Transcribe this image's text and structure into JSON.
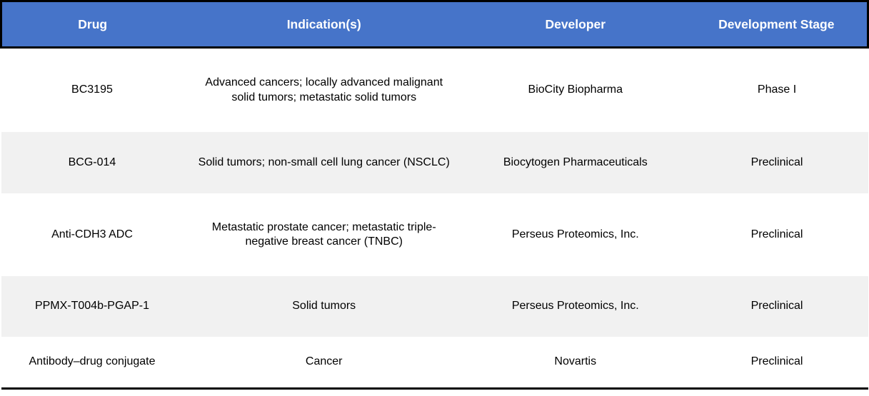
{
  "table": {
    "title": "drug-development-pipeline",
    "colors": {
      "header_bg": "#4674c9",
      "header_text": "#ffffff",
      "row_bg": "#ffffff",
      "row_alt_bg": "#f1f1f1",
      "frame_border": "#000000",
      "body_text": "#000000"
    },
    "columns": [
      {
        "key": "drug",
        "label": "Drug"
      },
      {
        "key": "indication",
        "label": "Indication(s)"
      },
      {
        "key": "developer",
        "label": "Developer"
      },
      {
        "key": "stage",
        "label": "Development Stage"
      }
    ],
    "rows": [
      {
        "drug": "BC3195",
        "indication": "Advanced cancers; locally advanced malignant solid tumors; metastatic solid tumors",
        "developer": "BioCity Biopharma",
        "stage": "Phase I"
      },
      {
        "drug": "BCG-014",
        "indication": "Solid tumors; non-small cell lung cancer (NSCLC)",
        "developer": "Biocytogen Pharmaceuticals",
        "stage": "Preclinical"
      },
      {
        "drug": "Anti-CDH3 ADC",
        "indication": "Metastatic prostate cancer; metastatic triple-negative breast cancer (TNBC)",
        "developer": "Perseus Proteomics, Inc.",
        "stage": "Preclinical"
      },
      {
        "drug": "PPMX-T004b-PGAP-1",
        "indication": "Solid tumors",
        "developer": "Perseus Proteomics, Inc.",
        "stage": "Preclinical"
      },
      {
        "drug": "Antibody–drug conjugate",
        "indication": "Cancer",
        "developer": "Novartis",
        "stage": "Preclinical"
      }
    ]
  }
}
